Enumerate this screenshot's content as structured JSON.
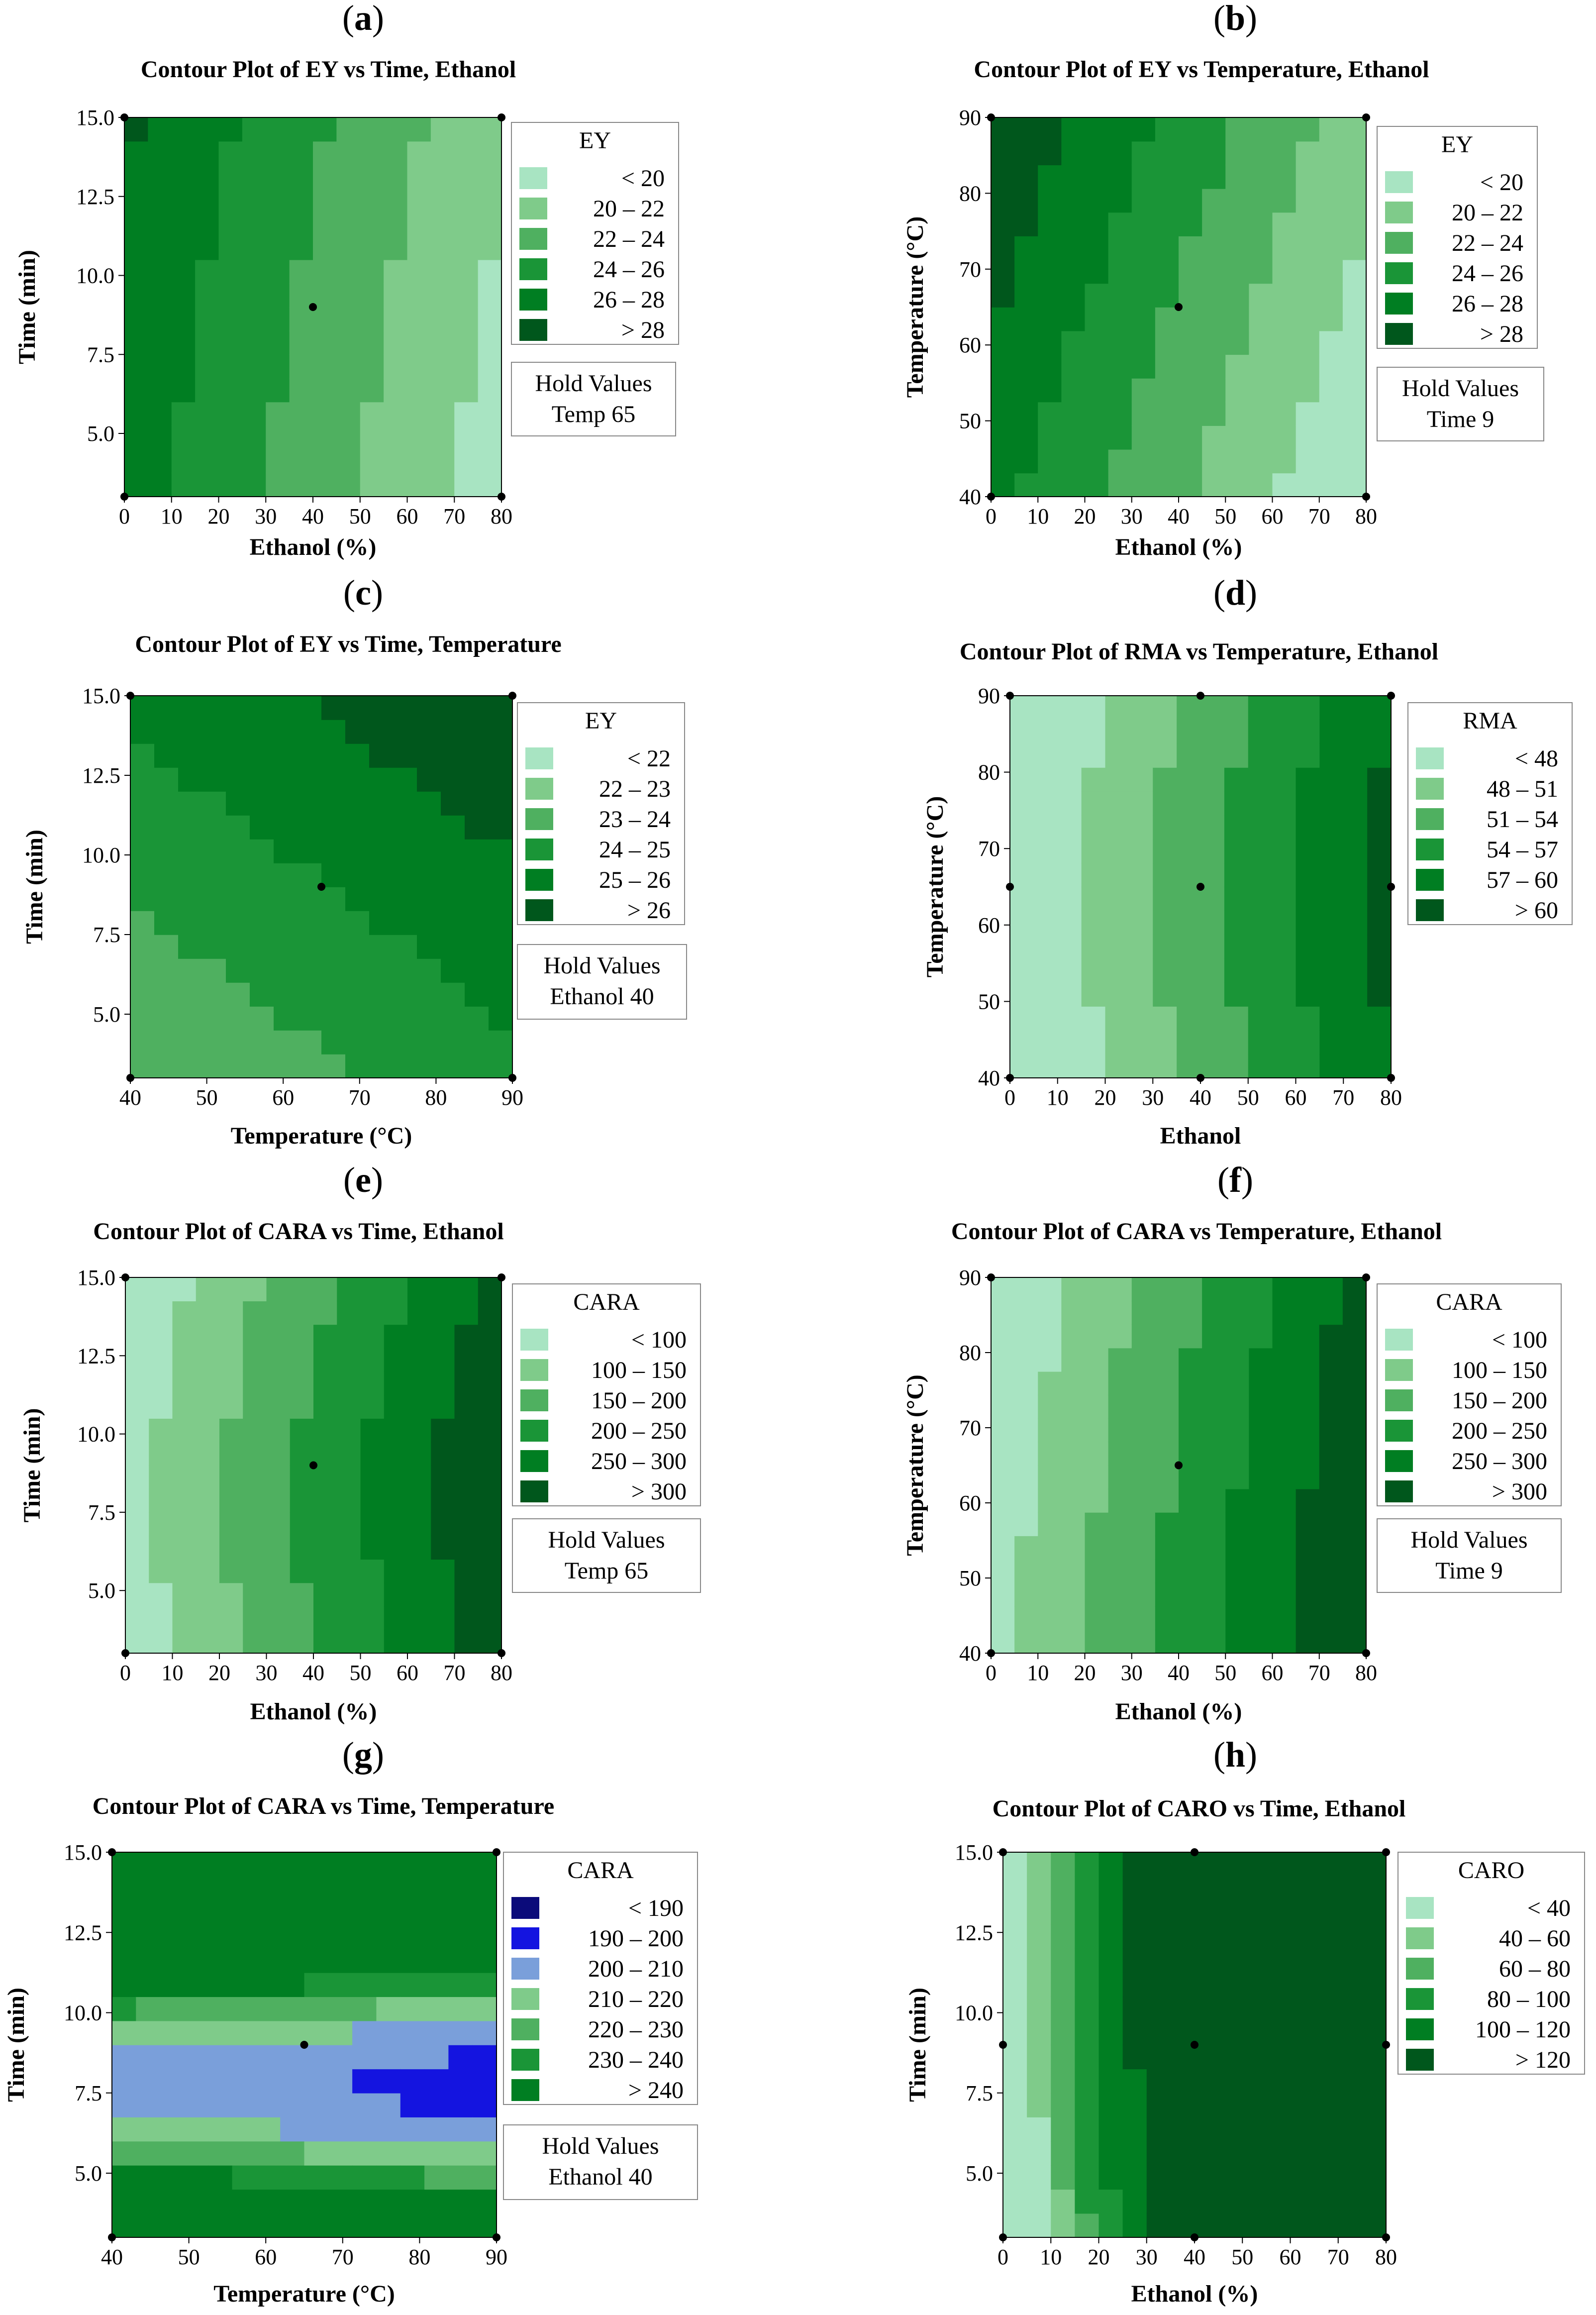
{
  "chart_data": [
    {
      "type": "contour",
      "panel": "a",
      "title": "Contour Plot of EY vs Time, Ethanol",
      "xlabel": "Ethanol (%)",
      "ylabel": "Time (min)",
      "xticks": [
        "0",
        "10",
        "20",
        "30",
        "40",
        "50",
        "60",
        "70",
        "80"
      ],
      "yticks": [
        "5.0",
        "7.5",
        "10.0",
        "12.5",
        "15.0"
      ],
      "xlim": [
        0,
        80
      ],
      "ylim": [
        3,
        15
      ],
      "legend_title": "EY",
      "legend": [
        {
          "range": "< 20",
          "color": "#A8E4C2"
        },
        {
          "range": "20 – 22",
          "color": "#7FCB8A"
        },
        {
          "range": "22 – 24",
          "color": "#4FB060"
        },
        {
          "range": "24 – 26",
          "color": "#1A9537"
        },
        {
          "range": "26 – 28",
          "color": "#007E22"
        },
        {
          "range": "> 28",
          "color": "#00571C"
        }
      ],
      "hold_title": "Hold Values",
      "hold": "Temp 65",
      "design_points": [
        [
          0,
          3
        ],
        [
          0,
          15
        ],
        [
          80,
          3
        ],
        [
          80,
          15
        ],
        [
          40,
          9
        ]
      ]
    },
    {
      "type": "contour",
      "panel": "b",
      "title": "Contour Plot of EY vs Temperature, Ethanol",
      "xlabel": "Ethanol (%)",
      "ylabel": "Temperature (°C)",
      "xticks": [
        "0",
        "10",
        "20",
        "30",
        "40",
        "50",
        "60",
        "70",
        "80"
      ],
      "yticks": [
        "40",
        "50",
        "60",
        "70",
        "80",
        "90"
      ],
      "xlim": [
        0,
        80
      ],
      "ylim": [
        40,
        90
      ],
      "legend_title": "EY",
      "legend": [
        {
          "range": "< 20",
          "color": "#A8E4C2"
        },
        {
          "range": "20 – 22",
          "color": "#7FCB8A"
        },
        {
          "range": "22 – 24",
          "color": "#4FB060"
        },
        {
          "range": "24 – 26",
          "color": "#1A9537"
        },
        {
          "range": "26 – 28",
          "color": "#007E22"
        },
        {
          "range": "> 28",
          "color": "#00571C"
        }
      ],
      "hold_title": "Hold Values",
      "hold": "Time 9",
      "design_points": [
        [
          0,
          40
        ],
        [
          0,
          90
        ],
        [
          80,
          40
        ],
        [
          80,
          90
        ],
        [
          40,
          65
        ]
      ]
    },
    {
      "type": "contour",
      "panel": "c",
      "title": "Contour Plot of EY vs Time, Temperature",
      "xlabel": "Temperature (°C)",
      "ylabel": "Time (min)",
      "xticks": [
        "40",
        "50",
        "60",
        "70",
        "80",
        "90"
      ],
      "yticks": [
        "5.0",
        "7.5",
        "10.0",
        "12.5",
        "15.0"
      ],
      "xlim": [
        40,
        90
      ],
      "ylim": [
        3,
        15
      ],
      "legend_title": "EY",
      "legend": [
        {
          "range": "< 22",
          "color": "#A8E4C2"
        },
        {
          "range": "22 – 23",
          "color": "#7FCB8A"
        },
        {
          "range": "23 – 24",
          "color": "#4FB060"
        },
        {
          "range": "24 – 25",
          "color": "#1A9537"
        },
        {
          "range": "25 – 26",
          "color": "#007E22"
        },
        {
          "range": "> 26",
          "color": "#00571C"
        }
      ],
      "hold_title": "Hold Values",
      "hold": "Ethanol 40",
      "design_points": [
        [
          40,
          3
        ],
        [
          40,
          15
        ],
        [
          90,
          3
        ],
        [
          90,
          15
        ],
        [
          65,
          9
        ]
      ]
    },
    {
      "type": "contour",
      "panel": "d",
      "title": "Contour Plot of RMA vs Temperature, Ethanol",
      "xlabel": "Ethanol",
      "ylabel": "Temperature (°C)",
      "xticks": [
        "0",
        "10",
        "20",
        "30",
        "40",
        "50",
        "60",
        "70",
        "80"
      ],
      "yticks": [
        "40",
        "50",
        "60",
        "70",
        "80",
        "90"
      ],
      "xlim": [
        0,
        80
      ],
      "ylim": [
        40,
        90
      ],
      "legend_title": "RMA",
      "legend": [
        {
          "range": "< 48",
          "color": "#A8E4C2"
        },
        {
          "range": "48 – 51",
          "color": "#7FCB8A"
        },
        {
          "range": "51 – 54",
          "color": "#4FB060"
        },
        {
          "range": "54 – 57",
          "color": "#1A9537"
        },
        {
          "range": "57 – 60",
          "color": "#007E22"
        },
        {
          "range": "> 60",
          "color": "#00571C"
        }
      ],
      "hold_title": "",
      "hold": "",
      "design_points": [
        [
          0,
          40
        ],
        [
          0,
          90
        ],
        [
          80,
          40
        ],
        [
          80,
          90
        ],
        [
          40,
          40
        ],
        [
          40,
          90
        ],
        [
          0,
          65
        ],
        [
          80,
          65
        ],
        [
          40,
          65
        ]
      ]
    },
    {
      "type": "contour",
      "panel": "e",
      "title": "Contour Plot of CARA vs Time, Ethanol",
      "xlabel": "Ethanol (%)",
      "ylabel": "Time (min)",
      "xticks": [
        "0",
        "10",
        "20",
        "30",
        "40",
        "50",
        "60",
        "70",
        "80"
      ],
      "yticks": [
        "5.0",
        "7.5",
        "10.0",
        "12.5",
        "15.0"
      ],
      "xlim": [
        0,
        80
      ],
      "ylim": [
        3,
        15
      ],
      "legend_title": "CARA",
      "legend": [
        {
          "range": "< 100",
          "color": "#A8E4C2"
        },
        {
          "range": "100 – 150",
          "color": "#7FCB8A"
        },
        {
          "range": "150 – 200",
          "color": "#4FB060"
        },
        {
          "range": "200 – 250",
          "color": "#1A9537"
        },
        {
          "range": "250 – 300",
          "color": "#007E22"
        },
        {
          "range": "> 300",
          "color": "#00571C"
        }
      ],
      "hold_title": "Hold Values",
      "hold": "Temp 65",
      "design_points": [
        [
          0,
          3
        ],
        [
          0,
          15
        ],
        [
          80,
          3
        ],
        [
          80,
          15
        ],
        [
          40,
          9
        ]
      ]
    },
    {
      "type": "contour",
      "panel": "f",
      "title": "Contour Plot of CARA vs Temperature, Ethanol",
      "xlabel": "Ethanol (%)",
      "ylabel": "Temperature (°C)",
      "xticks": [
        "0",
        "10",
        "20",
        "30",
        "40",
        "50",
        "60",
        "70",
        "80"
      ],
      "yticks": [
        "40",
        "50",
        "60",
        "70",
        "80",
        "90"
      ],
      "xlim": [
        0,
        80
      ],
      "ylim": [
        40,
        90
      ],
      "legend_title": "CARA",
      "legend": [
        {
          "range": "< 100",
          "color": "#A8E4C2"
        },
        {
          "range": "100 – 150",
          "color": "#7FCB8A"
        },
        {
          "range": "150 – 200",
          "color": "#4FB060"
        },
        {
          "range": "200 – 250",
          "color": "#1A9537"
        },
        {
          "range": "250 – 300",
          "color": "#007E22"
        },
        {
          "range": "> 300",
          "color": "#00571C"
        }
      ],
      "hold_title": "Hold Values",
      "hold": "Time 9",
      "design_points": [
        [
          0,
          40
        ],
        [
          0,
          90
        ],
        [
          80,
          40
        ],
        [
          80,
          90
        ],
        [
          40,
          65
        ]
      ]
    },
    {
      "type": "contour",
      "panel": "g",
      "title": "Contour Plot of CARA vs Time, Temperature",
      "xlabel": "Temperature (°C)",
      "ylabel": "Time (min)",
      "xticks": [
        "40",
        "50",
        "60",
        "70",
        "80",
        "90"
      ],
      "yticks": [
        "5.0",
        "7.5",
        "10.0",
        "12.5",
        "15.0"
      ],
      "xlim": [
        40,
        90
      ],
      "ylim": [
        3,
        15
      ],
      "legend_title": "CARA",
      "legend": [
        {
          "range": "< 190",
          "color": "#0B0B7A"
        },
        {
          "range": "190 – 200",
          "color": "#1414E0"
        },
        {
          "range": "200 – 210",
          "color": "#7A9FDA"
        },
        {
          "range": "210 – 220",
          "color": "#7FCB8A"
        },
        {
          "range": "220 – 230",
          "color": "#4FB060"
        },
        {
          "range": "230 – 240",
          "color": "#1A9537"
        },
        {
          "range": "> 240",
          "color": "#007E22"
        }
      ],
      "hold_title": "Hold Values",
      "hold": "Ethanol 40",
      "design_points": [
        [
          40,
          3
        ],
        [
          40,
          15
        ],
        [
          90,
          3
        ],
        [
          90,
          15
        ],
        [
          65,
          9
        ]
      ]
    },
    {
      "type": "contour",
      "panel": "h",
      "title": "Contour Plot of CARO vs Time, Ethanol",
      "xlabel": "Ethanol (%)",
      "ylabel": "Time (min)",
      "xticks": [
        "0",
        "10",
        "20",
        "30",
        "40",
        "50",
        "60",
        "70",
        "80"
      ],
      "yticks": [
        "5.0",
        "7.5",
        "10.0",
        "12.5",
        "15.0"
      ],
      "xlim": [
        0,
        80
      ],
      "ylim": [
        3,
        15
      ],
      "legend_title": "CARO",
      "legend": [
        {
          "range": "< 40",
          "color": "#A8E4C2"
        },
        {
          "range": "40 – 60",
          "color": "#7FCB8A"
        },
        {
          "range": "60 – 80",
          "color": "#4FB060"
        },
        {
          "range": "80 – 100",
          "color": "#1A9537"
        },
        {
          "range": "100 – 120",
          "color": "#007E22"
        },
        {
          "range": "> 120",
          "color": "#00571C"
        }
      ],
      "hold_title": "",
      "hold": "",
      "design_points": [
        [
          0,
          3
        ],
        [
          0,
          15
        ],
        [
          80,
          3
        ],
        [
          80,
          15
        ],
        [
          40,
          3
        ],
        [
          40,
          15
        ],
        [
          0,
          9
        ],
        [
          80,
          9
        ],
        [
          40,
          9
        ]
      ]
    }
  ]
}
